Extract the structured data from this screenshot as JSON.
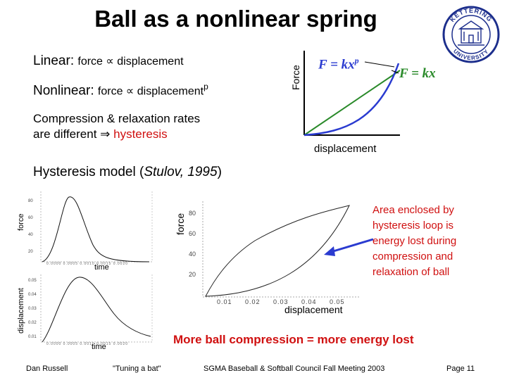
{
  "title": "Ball as a nonlinear spring",
  "linear": {
    "prefix": "Linear: ",
    "text": "force ∝ displacement"
  },
  "nonlinear": {
    "prefix": "Nonlinear: ",
    "text": "force ∝ displacement",
    "exp": "p"
  },
  "compression": {
    "line1": "Compression & relaxation rates",
    "line2_prefix": "are different ⇒ ",
    "line2_highlight": "hysteresis"
  },
  "top_graph": {
    "ylabel": "Force",
    "xlabel": "displacement",
    "nonlinear_label": "F = kx",
    "nonlinear_exp": "p",
    "linear_label": "F = kx",
    "colors": {
      "nonlinear": "#2a3bd0",
      "linear": "#2a8a2a"
    }
  },
  "hysteresis_model": {
    "prefix": "Hysteresis model (",
    "citation": "Stulov, 1995",
    "suffix": ")"
  },
  "small_force_plot": {
    "ylabel": "force",
    "xlabel": "time",
    "yticks": [
      "80",
      "60",
      "40",
      "20"
    ]
  },
  "small_disp_plot": {
    "ylabel": "displacement",
    "xlabel": "time"
  },
  "loop_plot": {
    "ylabel": "force",
    "xlabel": "displacement",
    "yticks": [
      "80",
      "60",
      "40",
      "20"
    ],
    "xticks": [
      "0.01",
      "0.02",
      "0.03",
      "0.04",
      "0.05"
    ]
  },
  "area_text": {
    "line1": "Area enclosed by",
    "line2": "hysteresis loop is",
    "line3": "energy lost during",
    "line4": "compression and",
    "line5": "relaxation of ball"
  },
  "conclusion": "More ball compression = more energy lost",
  "footer": {
    "author": "Dan Russell",
    "talk": "\"Tuning a bat\"",
    "meeting": "SGMA Baseball & Softball Council Fall Meeting 2003",
    "page": "Page 11"
  },
  "seal": {
    "top_text": "KETTERING",
    "bottom_text": "UNIVERSITY"
  }
}
